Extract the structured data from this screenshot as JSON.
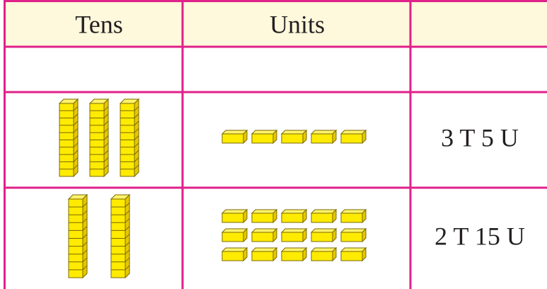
{
  "table": {
    "header": [
      "Tens",
      "Units"
    ],
    "rows": [
      {
        "tens": 3,
        "units": 5,
        "label": "3 T 5 U"
      },
      {
        "tens": 2,
        "units": 15,
        "label": "2 T 15 U"
      }
    ]
  }
}
